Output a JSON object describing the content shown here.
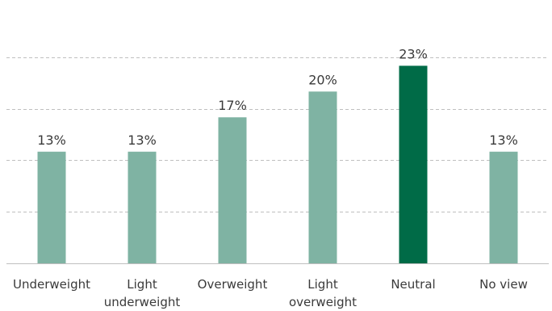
{
  "chart_data": {
    "type": "bar",
    "title": "",
    "xlabel": "",
    "ylabel": "",
    "categories": [
      [
        "Underweight"
      ],
      [
        "Light",
        "underweight"
      ],
      [
        "Overweight"
      ],
      [
        "Light",
        "overweight"
      ],
      [
        "Neutral"
      ],
      [
        "No view"
      ]
    ],
    "values": [
      13,
      13,
      17,
      20,
      23,
      13
    ],
    "data_labels": [
      "13%",
      "13%",
      "17%",
      "20%",
      "23%",
      "13%"
    ],
    "unit": "%",
    "ylim": [
      0,
      30
    ],
    "gridlines": [
      6,
      12,
      18,
      24
    ],
    "grid": true,
    "legend": "none",
    "colors": {
      "default_bar": "#7fb3a3",
      "highlight_bar": "#006b47",
      "grid": "#bfbfbf",
      "axis": "#bfbfbf",
      "text": "#3a3a3a"
    },
    "highlight_index": 4
  }
}
